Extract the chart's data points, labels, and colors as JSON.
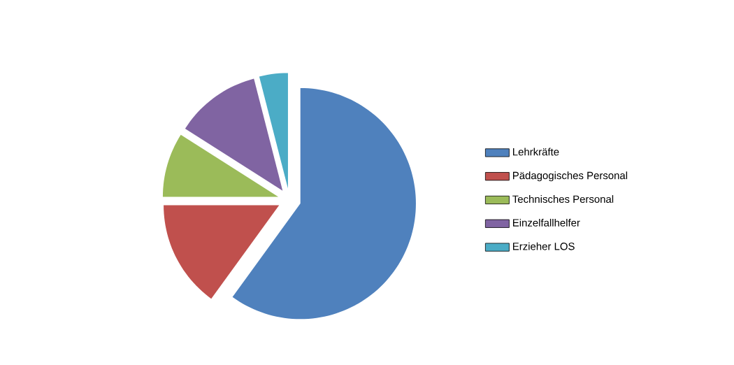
{
  "chart_data": {
    "type": "pie",
    "categories": [
      "Lehrkräfte",
      "Pädagogisches Personal",
      "Technisches Personal",
      "Einzelfallhelfer",
      "Erzieher LOS"
    ],
    "values": [
      60,
      15,
      9,
      12,
      4
    ],
    "colors": [
      "#4f81bd",
      "#c0504d",
      "#9bbb59",
      "#8064a2",
      "#4bacc6"
    ],
    "legend": "right"
  }
}
